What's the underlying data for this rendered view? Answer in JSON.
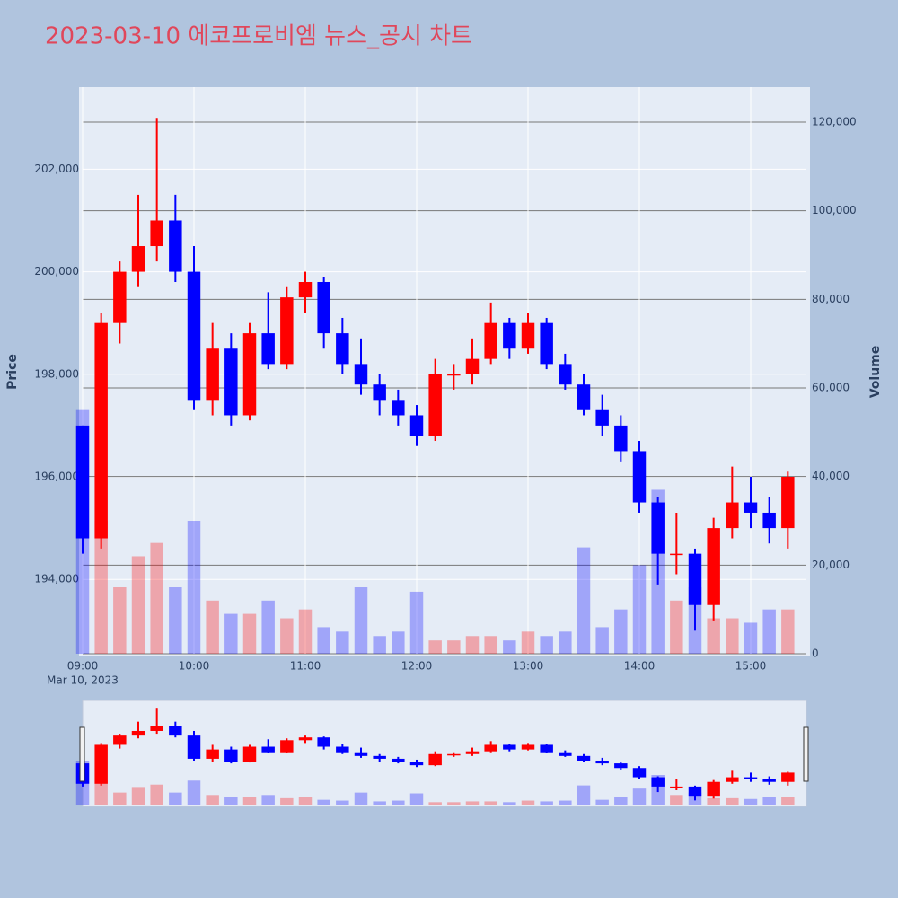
{
  "chart_data": {
    "type": "candlestick",
    "title": "2023-03-10 에코프로비엠 뉴스_공시 차트",
    "y_label": "Price",
    "y2_label": "Volume",
    "x_date_label": "Mar 10, 2023",
    "increasing_color": "#ff0000",
    "decreasing_color": "#0000ff",
    "x": [
      "2023-03-10 09:00",
      "2023-03-10 09:10",
      "2023-03-10 09:20",
      "2023-03-10 09:30",
      "2023-03-10 09:40",
      "2023-03-10 09:50",
      "2023-03-10 10:00",
      "2023-03-10 10:10",
      "2023-03-10 10:20",
      "2023-03-10 10:30",
      "2023-03-10 10:40",
      "2023-03-10 10:50",
      "2023-03-10 11:00",
      "2023-03-10 11:10",
      "2023-03-10 11:20",
      "2023-03-10 11:30",
      "2023-03-10 11:40",
      "2023-03-10 11:50",
      "2023-03-10 12:00",
      "2023-03-10 12:10",
      "2023-03-10 12:20",
      "2023-03-10 12:30",
      "2023-03-10 12:40",
      "2023-03-10 12:50",
      "2023-03-10 13:00",
      "2023-03-10 13:10",
      "2023-03-10 13:20",
      "2023-03-10 13:30",
      "2023-03-10 13:40",
      "2023-03-10 13:50",
      "2023-03-10 14:00",
      "2023-03-10 14:10",
      "2023-03-10 14:20",
      "2023-03-10 14:30",
      "2023-03-10 14:40",
      "2023-03-10 14:50",
      "2023-03-10 15:00",
      "2023-03-10 15:10",
      "2023-03-10 15:20"
    ],
    "open": [
      197000,
      194800,
      199000,
      200000,
      200500,
      201000,
      200000,
      197500,
      198500,
      197200,
      198800,
      198200,
      199500,
      199800,
      198800,
      198200,
      197800,
      197500,
      197200,
      196800,
      198000,
      198000,
      198300,
      199000,
      198500,
      199000,
      198200,
      197800,
      197300,
      197000,
      196500,
      195500,
      194500,
      194500,
      193500,
      195000,
      195500,
      195300,
      195000
    ],
    "high": [
      197000,
      199200,
      200200,
      201500,
      203000,
      201500,
      200500,
      199000,
      198800,
      199000,
      199600,
      199700,
      200000,
      199900,
      199100,
      198700,
      198000,
      197700,
      197400,
      198300,
      198200,
      198700,
      199400,
      199100,
      199200,
      199100,
      198400,
      198000,
      197600,
      197200,
      196700,
      195600,
      195300,
      194600,
      195200,
      196200,
      196000,
      195600,
      196100
    ],
    "low": [
      194500,
      194600,
      198600,
      199700,
      200200,
      199800,
      197300,
      197200,
      197000,
      197100,
      198100,
      198100,
      199200,
      198500,
      198000,
      197600,
      197200,
      197000,
      196600,
      196700,
      197700,
      197800,
      198200,
      198300,
      198400,
      198100,
      197700,
      197200,
      196800,
      196300,
      195300,
      193900,
      194100,
      193000,
      193200,
      194800,
      195000,
      194700,
      194600
    ],
    "close": [
      194800,
      199000,
      200000,
      200500,
      201000,
      200000,
      197500,
      198500,
      197200,
      198800,
      198200,
      199500,
      199800,
      198800,
      198200,
      197800,
      197500,
      197200,
      196800,
      198000,
      198000,
      198300,
      199000,
      198500,
      199000,
      198200,
      197800,
      197300,
      197000,
      196500,
      195500,
      194500,
      194500,
      193500,
      195000,
      195500,
      195300,
      195000,
      196000
    ],
    "volume": [
      55000,
      30000,
      15000,
      22000,
      25000,
      15000,
      30000,
      12000,
      9000,
      9000,
      12000,
      8000,
      10000,
      6000,
      5000,
      15000,
      4000,
      5000,
      14000,
      3000,
      3000,
      4000,
      4000,
      3000,
      5000,
      4000,
      5000,
      24000,
      6000,
      10000,
      20000,
      37000,
      12000,
      15000,
      8000,
      8000,
      7000,
      10000,
      10000
    ],
    "xlim": [
      "2023-03-10 09:00",
      "2023-03-10 15:30"
    ],
    "xticks": [
      {
        "value": "2023-03-10 09:00",
        "label": "09:00"
      },
      {
        "value": "2023-03-10 10:00",
        "label": "10:00"
      },
      {
        "value": "2023-03-10 11:00",
        "label": "11:00"
      },
      {
        "value": "2023-03-10 12:00",
        "label": "12:00"
      },
      {
        "value": "2023-03-10 13:00",
        "label": "13:00"
      },
      {
        "value": "2023-03-10 14:00",
        "label": "14:00"
      },
      {
        "value": "2023-03-10 15:00",
        "label": "15:00"
      }
    ],
    "ylim": [
      192550,
      203600
    ],
    "yticks": [
      {
        "value": 194000,
        "label": "194,000"
      },
      {
        "value": 196000,
        "label": "196,000"
      },
      {
        "value": 198000,
        "label": "198,000"
      },
      {
        "value": 200000,
        "label": "200,000"
      },
      {
        "value": 202000,
        "label": "202,000"
      }
    ],
    "y2lim": [
      0,
      127900
    ],
    "y2ticks": [
      0,
      {
        "value": 20000,
        "label": "20,000"
      },
      {
        "value": 40000,
        "label": "40,000"
      },
      {
        "value": 60000,
        "label": "60,000"
      },
      {
        "value": 80000,
        "label": "80,000"
      },
      {
        "value": 100000,
        "label": "100,000"
      },
      {
        "value": 120000,
        "label": "120,000"
      }
    ],
    "grid": true,
    "rangeslider": true
  }
}
